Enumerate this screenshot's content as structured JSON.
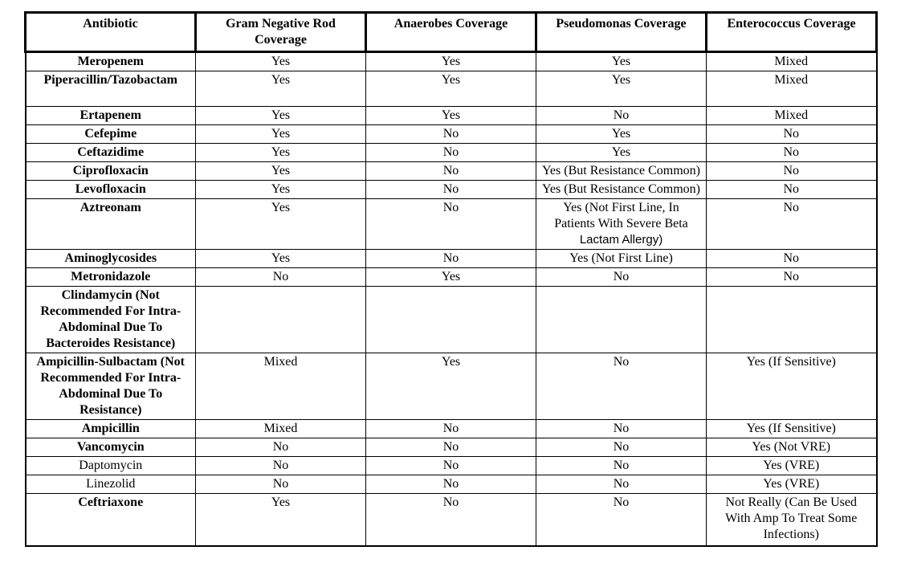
{
  "table": {
    "columns": [
      "Antibiotic",
      "Gram Negative Rod Coverage",
      "Anaerobes Coverage",
      "Pseudomonas Coverage",
      "Enterococcus Coverage"
    ],
    "rows": [
      {
        "antibiotic": "Meropenem",
        "cells": [
          "Yes",
          "Yes",
          "Yes",
          "Mixed"
        ]
      },
      {
        "antibiotic": "Piperacillin/Tazobactam",
        "extra_blank_line": true,
        "cells": [
          "Yes",
          "Yes",
          "Yes",
          "Mixed"
        ]
      },
      {
        "antibiotic": "Ertapenem",
        "cells": [
          "Yes",
          "Yes",
          "No",
          "Mixed"
        ]
      },
      {
        "antibiotic": "Cefepime",
        "cells": [
          "Yes",
          "No",
          "Yes",
          "No"
        ]
      },
      {
        "antibiotic": "Ceftazidime",
        "cells": [
          "Yes",
          "No",
          "Yes",
          "No"
        ]
      },
      {
        "antibiotic": "Ciprofloxacin",
        "cells": [
          "Yes",
          "No",
          "Yes (But Resistance Common)",
          "No"
        ]
      },
      {
        "antibiotic": "Levofloxacin",
        "cells": [
          "Yes",
          "No",
          "Yes (But Resistance Common)",
          "No"
        ]
      },
      {
        "antibiotic": "Aztreonam",
        "cells": [
          "Yes",
          "No",
          [
            {
              "text": "Yes (Not First Line, In Patients With Severe Beta "
            },
            {
              "text": "Lactam Allergy)",
              "font": "sans"
            }
          ],
          "No"
        ]
      },
      {
        "antibiotic": "Aminoglycosides",
        "cells": [
          "Yes",
          "No",
          "Yes (Not First Line)",
          "No"
        ]
      },
      {
        "antibiotic": "Metronidazole",
        "cells": [
          "No",
          "Yes",
          "No",
          "No"
        ]
      },
      {
        "antibiotic": "Clindamycin (Not Recommended For Intra-Abdominal Due To Bacteroides Resistance)",
        "cells": [
          "",
          "",
          "",
          ""
        ]
      },
      {
        "antibiotic": "Ampicillin-Sulbactam (Not Recommended For Intra-Abdominal Due To Resistance)",
        "cells": [
          "Mixed",
          "Yes",
          "No",
          "Yes (If Sensitive)"
        ]
      },
      {
        "antibiotic": "Ampicillin",
        "cells": [
          "Mixed",
          "No",
          "No",
          "Yes (If Sensitive)"
        ]
      },
      {
        "antibiotic": "Vancomycin",
        "cells": [
          "No",
          "No",
          "No",
          "Yes (Not VRE)"
        ]
      },
      {
        "antibiotic": "Daptomycin",
        "bold": false,
        "cells": [
          "No",
          "No",
          "No",
          "Yes (VRE)"
        ]
      },
      {
        "antibiotic": "Linezolid",
        "bold": false,
        "cells": [
          "No",
          "No",
          "No",
          "Yes (VRE)"
        ]
      },
      {
        "antibiotic": "Ceftriaxone",
        "tall_end": true,
        "cells": [
          "Yes",
          "No",
          "No",
          "Not Really (Can Be Used With Amp To Treat Some Infections)"
        ]
      }
    ]
  }
}
